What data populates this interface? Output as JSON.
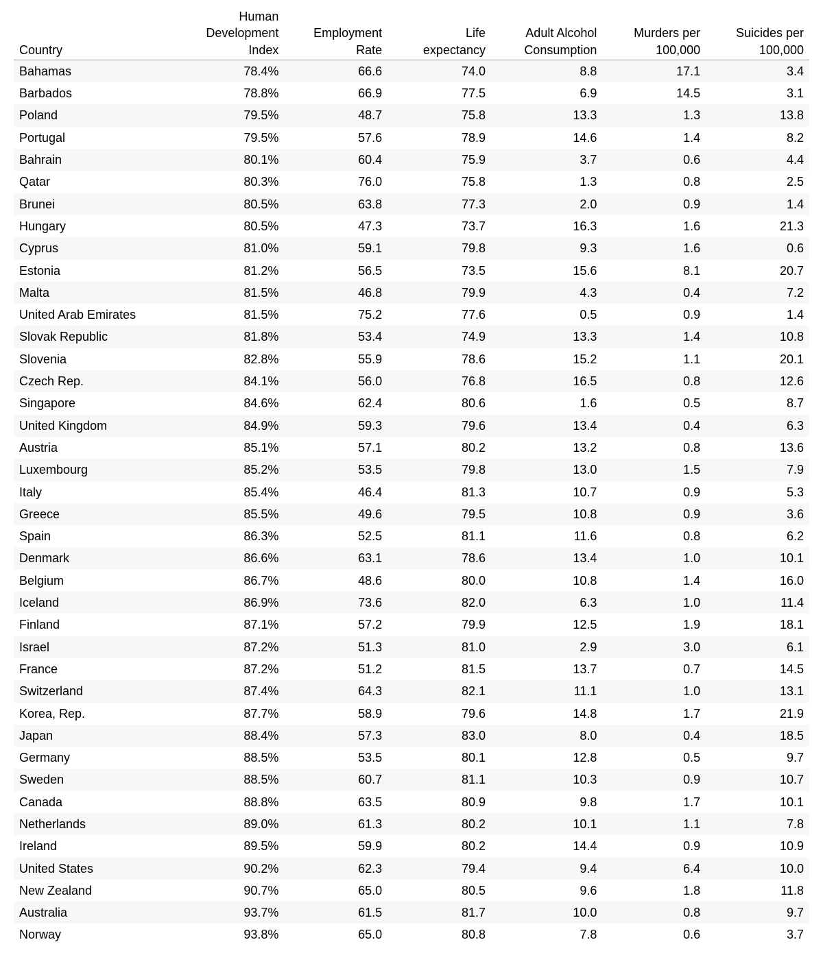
{
  "table": {
    "type": "table",
    "background_color": "#ffffff",
    "row_stripe_color": "#f7f7f7",
    "header_border_color": "#999999",
    "text_color": "#000000",
    "font_size_pt": 14,
    "font_family": "Arial",
    "columns": [
      {
        "key": "country",
        "label": "Country",
        "align": "left",
        "width_pct": 20
      },
      {
        "key": "hdi",
        "label": "Human Development Index",
        "align": "right",
        "width_pct": 14
      },
      {
        "key": "employment",
        "label": "Employment Rate",
        "align": "right",
        "width_pct": 13
      },
      {
        "key": "life_exp",
        "label": "Life expectancy",
        "align": "right",
        "width_pct": 13
      },
      {
        "key": "alcohol",
        "label": "Adult Alcohol Consumption",
        "align": "right",
        "width_pct": 14
      },
      {
        "key": "murders",
        "label": "Murders per 100,000",
        "align": "right",
        "width_pct": 13
      },
      {
        "key": "suicides",
        "label": "Suicides per 100,000",
        "align": "right",
        "width_pct": 13
      }
    ],
    "rows": [
      {
        "country": "Bahamas",
        "hdi": "78.4%",
        "employment": "66.6",
        "life_exp": "74.0",
        "alcohol": "8.8",
        "murders": "17.1",
        "suicides": "3.4"
      },
      {
        "country": "Barbados",
        "hdi": "78.8%",
        "employment": "66.9",
        "life_exp": "77.5",
        "alcohol": "6.9",
        "murders": "14.5",
        "suicides": "3.1"
      },
      {
        "country": "Poland",
        "hdi": "79.5%",
        "employment": "48.7",
        "life_exp": "75.8",
        "alcohol": "13.3",
        "murders": "1.3",
        "suicides": "13.8"
      },
      {
        "country": "Portugal",
        "hdi": "79.5%",
        "employment": "57.6",
        "life_exp": "78.9",
        "alcohol": "14.6",
        "murders": "1.4",
        "suicides": "8.2"
      },
      {
        "country": "Bahrain",
        "hdi": "80.1%",
        "employment": "60.4",
        "life_exp": "75.9",
        "alcohol": "3.7",
        "murders": "0.6",
        "suicides": "4.4"
      },
      {
        "country": "Qatar",
        "hdi": "80.3%",
        "employment": "76.0",
        "life_exp": "75.8",
        "alcohol": "1.3",
        "murders": "0.8",
        "suicides": "2.5"
      },
      {
        "country": "Brunei",
        "hdi": "80.5%",
        "employment": "63.8",
        "life_exp": "77.3",
        "alcohol": "2.0",
        "murders": "0.9",
        "suicides": "1.4"
      },
      {
        "country": "Hungary",
        "hdi": "80.5%",
        "employment": "47.3",
        "life_exp": "73.7",
        "alcohol": "16.3",
        "murders": "1.6",
        "suicides": "21.3"
      },
      {
        "country": "Cyprus",
        "hdi": "81.0%",
        "employment": "59.1",
        "life_exp": "79.8",
        "alcohol": "9.3",
        "murders": "1.6",
        "suicides": "0.6"
      },
      {
        "country": "Estonia",
        "hdi": "81.2%",
        "employment": "56.5",
        "life_exp": "73.5",
        "alcohol": "15.6",
        "murders": "8.1",
        "suicides": "20.7"
      },
      {
        "country": "Malta",
        "hdi": "81.5%",
        "employment": "46.8",
        "life_exp": "79.9",
        "alcohol": "4.3",
        "murders": "0.4",
        "suicides": "7.2"
      },
      {
        "country": "United Arab Emirates",
        "hdi": "81.5%",
        "employment": "75.2",
        "life_exp": "77.6",
        "alcohol": "0.5",
        "murders": "0.9",
        "suicides": "1.4"
      },
      {
        "country": "Slovak Republic",
        "hdi": "81.8%",
        "employment": "53.4",
        "life_exp": "74.9",
        "alcohol": "13.3",
        "murders": "1.4",
        "suicides": "10.8"
      },
      {
        "country": "Slovenia",
        "hdi": "82.8%",
        "employment": "55.9",
        "life_exp": "78.6",
        "alcohol": "15.2",
        "murders": "1.1",
        "suicides": "20.1"
      },
      {
        "country": "Czech Rep.",
        "hdi": "84.1%",
        "employment": "56.0",
        "life_exp": "76.8",
        "alcohol": "16.5",
        "murders": "0.8",
        "suicides": "12.6"
      },
      {
        "country": "Singapore",
        "hdi": "84.6%",
        "employment": "62.4",
        "life_exp": "80.6",
        "alcohol": "1.6",
        "murders": "0.5",
        "suicides": "8.7"
      },
      {
        "country": "United Kingdom",
        "hdi": "84.9%",
        "employment": "59.3",
        "life_exp": "79.6",
        "alcohol": "13.4",
        "murders": "0.4",
        "suicides": "6.3"
      },
      {
        "country": "Austria",
        "hdi": "85.1%",
        "employment": "57.1",
        "life_exp": "80.2",
        "alcohol": "13.2",
        "murders": "0.8",
        "suicides": "13.6"
      },
      {
        "country": "Luxembourg",
        "hdi": "85.2%",
        "employment": "53.5",
        "life_exp": "79.8",
        "alcohol": "13.0",
        "murders": "1.5",
        "suicides": "7.9"
      },
      {
        "country": "Italy",
        "hdi": "85.4%",
        "employment": "46.4",
        "life_exp": "81.3",
        "alcohol": "10.7",
        "murders": "0.9",
        "suicides": "5.3"
      },
      {
        "country": "Greece",
        "hdi": "85.5%",
        "employment": "49.6",
        "life_exp": "79.5",
        "alcohol": "10.8",
        "murders": "0.9",
        "suicides": "3.6"
      },
      {
        "country": "Spain",
        "hdi": "86.3%",
        "employment": "52.5",
        "life_exp": "81.1",
        "alcohol": "11.6",
        "murders": "0.8",
        "suicides": "6.2"
      },
      {
        "country": "Denmark",
        "hdi": "86.6%",
        "employment": "63.1",
        "life_exp": "78.6",
        "alcohol": "13.4",
        "murders": "1.0",
        "suicides": "10.1"
      },
      {
        "country": "Belgium",
        "hdi": "86.7%",
        "employment": "48.6",
        "life_exp": "80.0",
        "alcohol": "10.8",
        "murders": "1.4",
        "suicides": "16.0"
      },
      {
        "country": "Iceland",
        "hdi": "86.9%",
        "employment": "73.6",
        "life_exp": "82.0",
        "alcohol": "6.3",
        "murders": "1.0",
        "suicides": "11.4"
      },
      {
        "country": "Finland",
        "hdi": "87.1%",
        "employment": "57.2",
        "life_exp": "79.9",
        "alcohol": "12.5",
        "murders": "1.9",
        "suicides": "18.1"
      },
      {
        "country": "Israel",
        "hdi": "87.2%",
        "employment": "51.3",
        "life_exp": "81.0",
        "alcohol": "2.9",
        "murders": "3.0",
        "suicides": "6.1"
      },
      {
        "country": "France",
        "hdi": "87.2%",
        "employment": "51.2",
        "life_exp": "81.5",
        "alcohol": "13.7",
        "murders": "0.7",
        "suicides": "14.5"
      },
      {
        "country": "Switzerland",
        "hdi": "87.4%",
        "employment": "64.3",
        "life_exp": "82.1",
        "alcohol": "11.1",
        "murders": "1.0",
        "suicides": "13.1"
      },
      {
        "country": "Korea, Rep.",
        "hdi": "87.7%",
        "employment": "58.9",
        "life_exp": "79.6",
        "alcohol": "14.8",
        "murders": "1.7",
        "suicides": "21.9"
      },
      {
        "country": "Japan",
        "hdi": "88.4%",
        "employment": "57.3",
        "life_exp": "83.0",
        "alcohol": "8.0",
        "murders": "0.4",
        "suicides": "18.5"
      },
      {
        "country": "Germany",
        "hdi": "88.5%",
        "employment": "53.5",
        "life_exp": "80.1",
        "alcohol": "12.8",
        "murders": "0.5",
        "suicides": "9.7"
      },
      {
        "country": "Sweden",
        "hdi": "88.5%",
        "employment": "60.7",
        "life_exp": "81.1",
        "alcohol": "10.3",
        "murders": "0.9",
        "suicides": "10.7"
      },
      {
        "country": "Canada",
        "hdi": "88.8%",
        "employment": "63.5",
        "life_exp": "80.9",
        "alcohol": "9.8",
        "murders": "1.7",
        "suicides": "10.1"
      },
      {
        "country": "Netherlands",
        "hdi": "89.0%",
        "employment": "61.3",
        "life_exp": "80.2",
        "alcohol": "10.1",
        "murders": "1.1",
        "suicides": "7.8"
      },
      {
        "country": "Ireland",
        "hdi": "89.5%",
        "employment": "59.9",
        "life_exp": "80.2",
        "alcohol": "14.4",
        "murders": "0.9",
        "suicides": "10.9"
      },
      {
        "country": "United States",
        "hdi": "90.2%",
        "employment": "62.3",
        "life_exp": "79.4",
        "alcohol": "9.4",
        "murders": "6.4",
        "suicides": "10.0"
      },
      {
        "country": "New Zealand",
        "hdi": "90.7%",
        "employment": "65.0",
        "life_exp": "80.5",
        "alcohol": "9.6",
        "murders": "1.8",
        "suicides": "11.8"
      },
      {
        "country": "Australia",
        "hdi": "93.7%",
        "employment": "61.5",
        "life_exp": "81.7",
        "alcohol": "10.0",
        "murders": "0.8",
        "suicides": "9.7"
      },
      {
        "country": "Norway",
        "hdi": "93.8%",
        "employment": "65.0",
        "life_exp": "80.8",
        "alcohol": "7.8",
        "murders": "0.6",
        "suicides": "3.7"
      }
    ]
  }
}
